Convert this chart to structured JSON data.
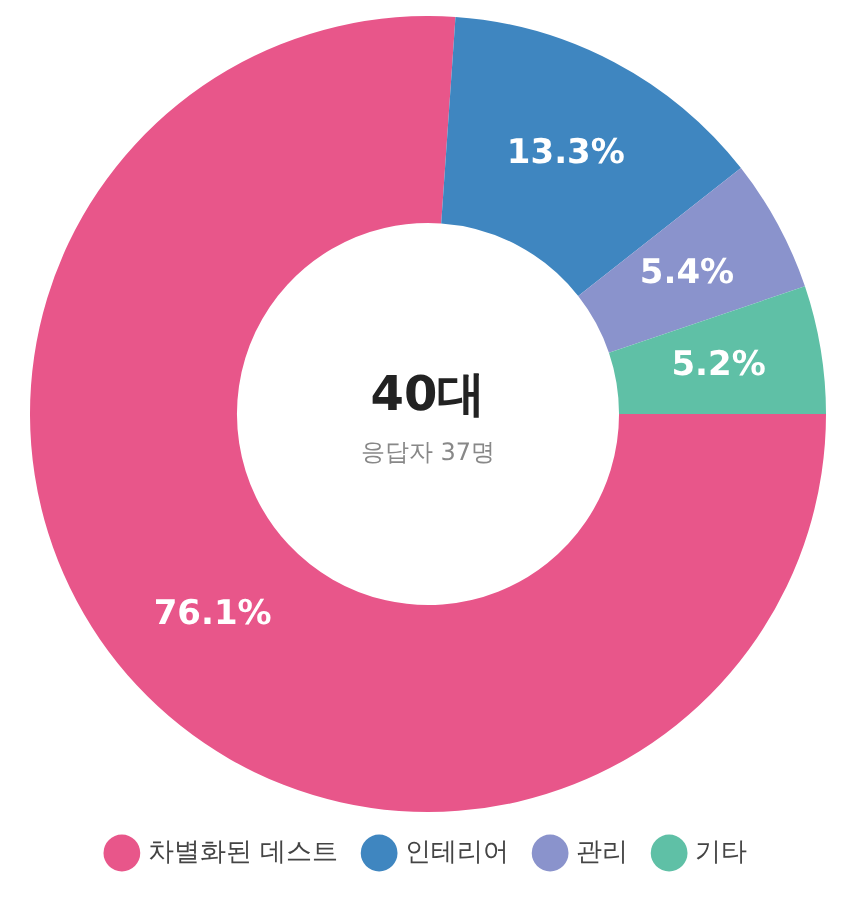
{
  "chart_data": {
    "type": "donut",
    "title": "40대",
    "subtitle": "응답자 37명",
    "categories": [
      "차별화된 데스트",
      "인테리어",
      "관리",
      "기타"
    ],
    "values": [
      76.1,
      13.3,
      5.4,
      5.2
    ],
    "colors": [
      "#e8568a",
      "#3f86c0",
      "#8a93cc",
      "#5fc0a6"
    ],
    "value_labels": [
      "76.1%",
      "13.3%",
      "5.4%",
      "5.2%"
    ],
    "legend": "bottom"
  }
}
